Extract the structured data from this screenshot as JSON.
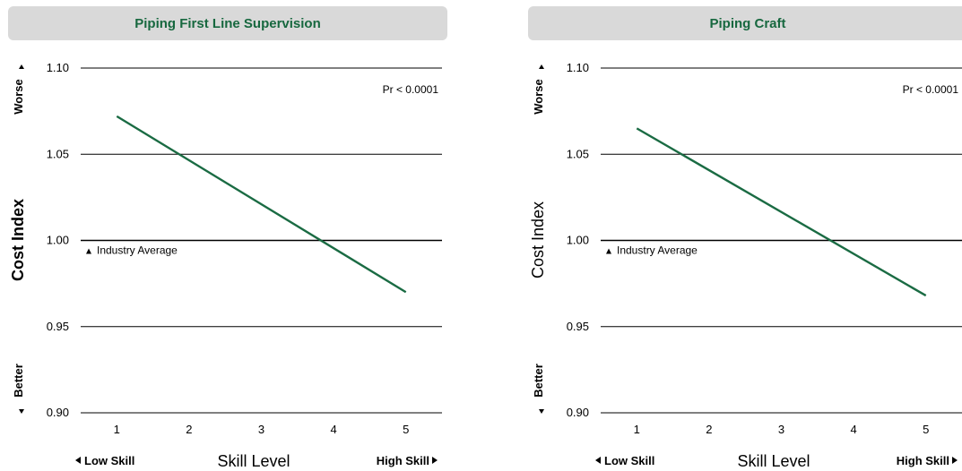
{
  "chart_data": [
    {
      "type": "line",
      "title": "Piping First Line Supervision",
      "xlabel": "Skill Level",
      "ylabel": "Cost Index",
      "ylabel_bold": true,
      "x_ticks": [
        "1",
        "2",
        "3",
        "4",
        "5"
      ],
      "y_ticks": [
        "1.10",
        "1.05",
        "1.00",
        "0.95",
        "0.90"
      ],
      "ylim": [
        0.9,
        1.1
      ],
      "xlim": [
        0.5,
        5.5
      ],
      "grid": true,
      "series": [
        {
          "x": [
            1,
            5
          ],
          "y": [
            1.072,
            0.97
          ],
          "color": "#1a6b43"
        }
      ],
      "annotations": {
        "pr": "Pr < 0.0001",
        "reference": "Industry Average",
        "worse": "Worse",
        "better": "Better",
        "low_skill": "Low Skill",
        "high_skill": "High Skill"
      }
    },
    {
      "type": "line",
      "title": "Piping Craft",
      "xlabel": "Skill Level",
      "ylabel": "Cost Index",
      "ylabel_bold": false,
      "x_ticks": [
        "1",
        "2",
        "3",
        "4",
        "5"
      ],
      "y_ticks": [
        "1.10",
        "1.05",
        "1.00",
        "0.95",
        "0.90"
      ],
      "ylim": [
        0.9,
        1.1
      ],
      "xlim": [
        0.5,
        5.5
      ],
      "grid": true,
      "series": [
        {
          "x": [
            1,
            5
          ],
          "y": [
            1.065,
            0.968
          ],
          "color": "#1a6b43"
        }
      ],
      "annotations": {
        "pr": "Pr < 0.0001",
        "reference": "Industry Average",
        "worse": "Worse",
        "better": "Better",
        "low_skill": "Low Skill",
        "high_skill": "High Skill"
      }
    }
  ],
  "colors": {
    "line": "#1a6b43",
    "title_text": "#17683f",
    "title_bg": "#d9d9d9"
  }
}
